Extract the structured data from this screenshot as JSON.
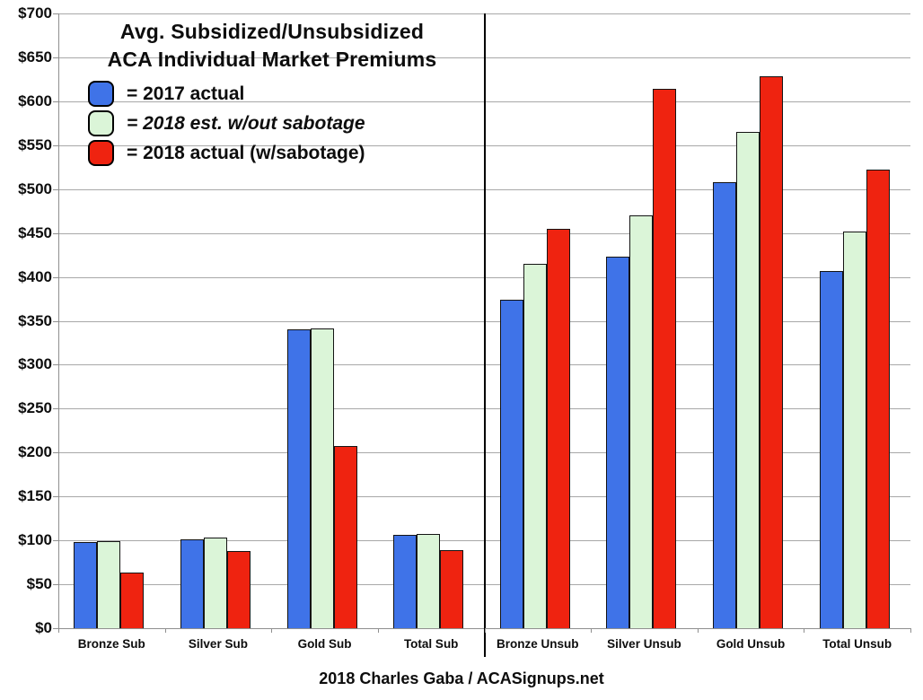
{
  "title_line1": "Avg. Subsidized/Unsubsidized",
  "title_line2": "ACA Individual Market Premiums",
  "caption": "2018 Charles Gaba / ACASignups.net",
  "legend": [
    {
      "label": "= 2017 actual",
      "color": "#3F73E8",
      "italic": false
    },
    {
      "label": "= 2018 est. w/out sabotage",
      "color": "#DBF5D8",
      "italic": true
    },
    {
      "label": "= 2018 actual (w/sabotage)",
      "color": "#EF2310",
      "italic": false
    }
  ],
  "chart_data": {
    "type": "bar",
    "title": "Avg. Subsidized/Unsubsidized ACA Individual Market Premiums",
    "categories": [
      "Bronze Sub",
      "Silver Sub",
      "Gold Sub",
      "Total Sub",
      "Bronze Unsub",
      "Silver Unsub",
      "Gold Unsub",
      "Total Unsub"
    ],
    "series": [
      {
        "name": "2017 actual",
        "color": "#3F73E8",
        "values": [
          98,
          101,
          340,
          106,
          374,
          423,
          508,
          407
        ]
      },
      {
        "name": "2018 est. w/out sabotage",
        "color": "#DBF5D8",
        "values": [
          99,
          103,
          341,
          107,
          415,
          470,
          565,
          452
        ]
      },
      {
        "name": "2018 actual (w/sabotage)",
        "color": "#EF2310",
        "values": [
          63,
          88,
          207,
          89,
          455,
          614,
          628,
          522
        ]
      }
    ],
    "ylim": [
      0,
      700
    ],
    "y_tick_step": 50,
    "y_tick_labels": [
      "$0",
      "$50",
      "$100",
      "$150",
      "$200",
      "$250",
      "$300",
      "$350",
      "$400",
      "$450",
      "$500",
      "$550",
      "$600",
      "$650",
      "$700"
    ],
    "grid": true,
    "legend_position": "top-left",
    "divider_after_category": 4,
    "footer": "2018 Charles Gaba / ACASignups.net"
  }
}
